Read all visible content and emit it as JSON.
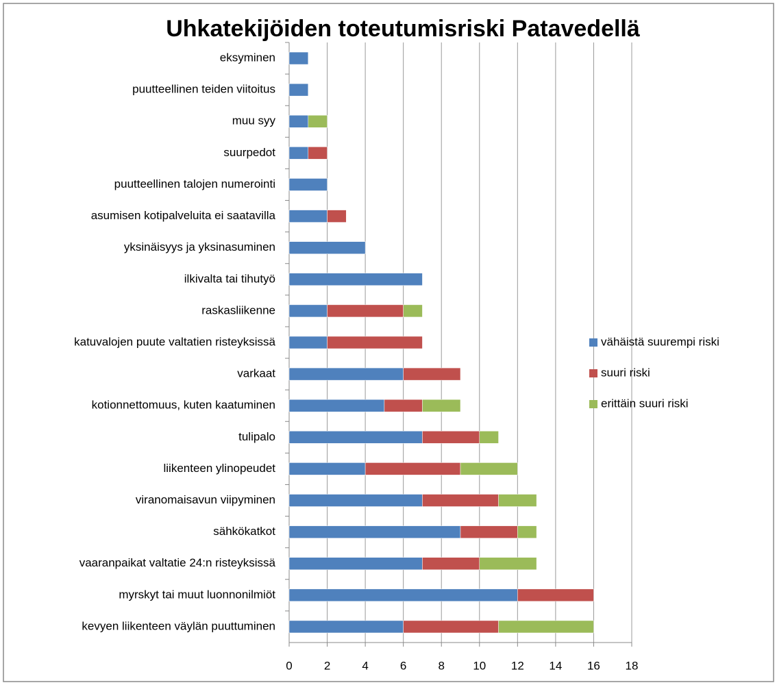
{
  "chart_data": {
    "type": "stacked-bar-horizontal",
    "title": "Uhkatekijöiden toteutumisriski Patavedellä",
    "categories": [
      "eksyminen",
      "puutteellinen teiden viitoitus",
      "muu syy",
      "suurpedot",
      "puutteellinen talojen numerointi",
      "asumisen kotipalveluita ei saatavilla",
      "yksinäisyys ja yksinasuminen",
      "ilkivalta tai tihutyö",
      "raskasliikenne",
      "katuvalojen puute valtatien risteyksissä",
      "varkaat",
      "kotionnettomuus, kuten kaatuminen",
      "tulipalo",
      "liikenteen ylinopeudet",
      "viranomaisavun viipyminen",
      "sähkökatkot",
      "vaaranpaikat valtatie 24:n risteyksissä",
      "myrskyt tai muut luonnonilmiöt",
      "kevyen liikenteen väylän puuttuminen"
    ],
    "series": [
      {
        "name": "vähäistä suurempi riski",
        "color": "#4f81bd",
        "values": [
          1,
          1,
          1,
          1,
          2,
          2,
          4,
          7,
          2,
          2,
          6,
          5,
          7,
          4,
          7,
          9,
          7,
          12,
          6
        ]
      },
      {
        "name": "suuri riski",
        "color": "#c0504d",
        "values": [
          0,
          0,
          0,
          1,
          0,
          1,
          0,
          0,
          4,
          5,
          3,
          2,
          3,
          5,
          4,
          3,
          3,
          4,
          5
        ]
      },
      {
        "name": "erittäin suuri riski",
        "color": "#9bbb59",
        "values": [
          0,
          0,
          1,
          0,
          0,
          0,
          0,
          0,
          1,
          0,
          0,
          2,
          1,
          3,
          2,
          1,
          3,
          0,
          5
        ]
      }
    ],
    "xlim": [
      0,
      18
    ],
    "xticks": [
      0,
      2,
      4,
      6,
      8,
      10,
      12,
      14,
      16,
      18
    ],
    "grid": true,
    "legend": "right"
  }
}
